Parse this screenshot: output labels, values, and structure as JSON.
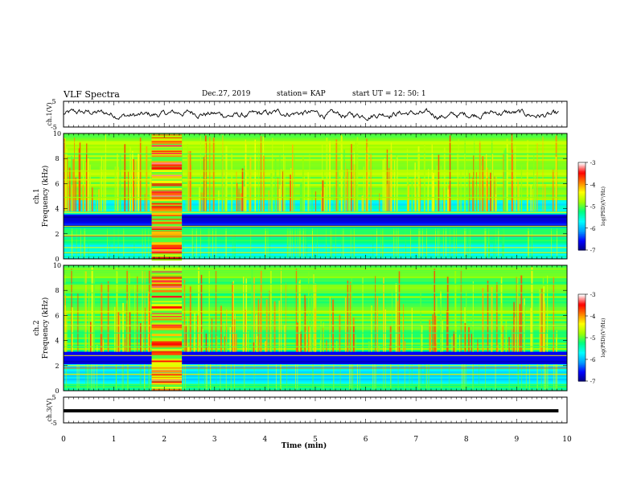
{
  "header": {
    "title": "VLF Spectra",
    "date": "Dec.27, 2019",
    "station": "station= KAP",
    "start": "start  UT =   12: 50: 1"
  },
  "chart_data": [
    {
      "type": "line",
      "panel": "ch1-waveform",
      "ylabel": "ch.1(V)",
      "ylim": [
        -5,
        5
      ],
      "yticks": [
        "5",
        "-5"
      ],
      "x_range_min": [
        0,
        9.83
      ]
    },
    {
      "type": "heatmap",
      "panel": "ch1-spectrogram",
      "ylabel": "ch.1\nFrequency (kHz)",
      "ylim": [
        0,
        10
      ],
      "yticks": [
        "0",
        "2",
        "4",
        "6",
        "8",
        "10"
      ],
      "colorbar": {
        "label": "log(PSD)(V²/Hz)",
        "range": [
          -7,
          -3
        ],
        "ticks": [
          "-3",
          "-4",
          "-5",
          "-6",
          "-7"
        ]
      }
    },
    {
      "type": "heatmap",
      "panel": "ch2-spectrogram",
      "ylabel": "ch.2\nFrequency (kHz)",
      "ylim": [
        0,
        10
      ],
      "yticks": [
        "0",
        "2",
        "4",
        "6",
        "8",
        "10"
      ],
      "colorbar": {
        "label": "log(PSD)(V²/Hz)",
        "range": [
          -7,
          -3
        ],
        "ticks": [
          "-3",
          "-4",
          "-5",
          "-6",
          "-7"
        ]
      }
    },
    {
      "type": "line",
      "panel": "ch3-waveform",
      "ylabel": "ch.3(V)",
      "ylim": [
        -5,
        5
      ],
      "yticks": [
        "5",
        "-5"
      ],
      "constant_value": 0
    }
  ],
  "xaxis": {
    "label": "Time  (min)",
    "ticks": [
      "0",
      "1",
      "2",
      "3",
      "4",
      "5",
      "6",
      "7",
      "8",
      "9",
      "10"
    ],
    "range": [
      0,
      10
    ]
  },
  "colors": {
    "colormap": [
      "#000080",
      "#0000ff",
      "#00a0ff",
      "#00ffff",
      "#00ff80",
      "#a0ff00",
      "#ffff00",
      "#ff8000",
      "#ff0000",
      "#ffffff"
    ]
  }
}
